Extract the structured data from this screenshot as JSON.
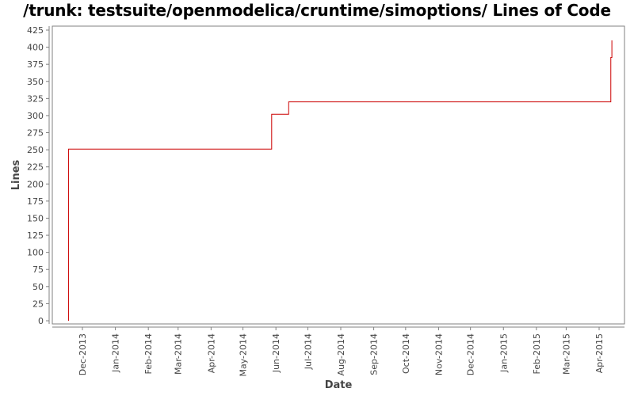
{
  "chart_data": {
    "type": "line",
    "step": true,
    "title": "/trunk: testsuite/openmodelica/cruntime/simoptions/ Lines of Code",
    "xlabel": "Date",
    "ylabel": "Lines",
    "ylim": [
      0,
      425
    ],
    "yticks": [
      0,
      25,
      50,
      75,
      100,
      125,
      150,
      175,
      200,
      225,
      250,
      275,
      300,
      325,
      350,
      375,
      400,
      425
    ],
    "xticks": [
      "Dec-2013",
      "Jan-2014",
      "Feb-2014",
      "Mar-2014",
      "Apr-2014",
      "May-2014",
      "Jun-2014",
      "Jul-2014",
      "Aug-2014",
      "Sep-2014",
      "Oct-2014",
      "Nov-2014",
      "Dec-2014",
      "Jan-2015",
      "Feb-2015",
      "Mar-2015",
      "Apr-2015"
    ],
    "grid": false,
    "legend": null,
    "series": [
      {
        "name": "Lines of Code",
        "color": "#cc0000",
        "points": [
          {
            "x": "2013-11-18",
            "y": 0
          },
          {
            "x": "2013-11-18",
            "y": 251
          },
          {
            "x": "2014-05-28",
            "y": 302
          },
          {
            "x": "2014-06-13",
            "y": 320
          },
          {
            "x": "2015-04-12",
            "y": 385
          },
          {
            "x": "2015-04-13",
            "y": 410
          }
        ]
      }
    ]
  },
  "colors": {
    "line": "#cc0000",
    "axis": "#808080",
    "text": "#444444"
  }
}
